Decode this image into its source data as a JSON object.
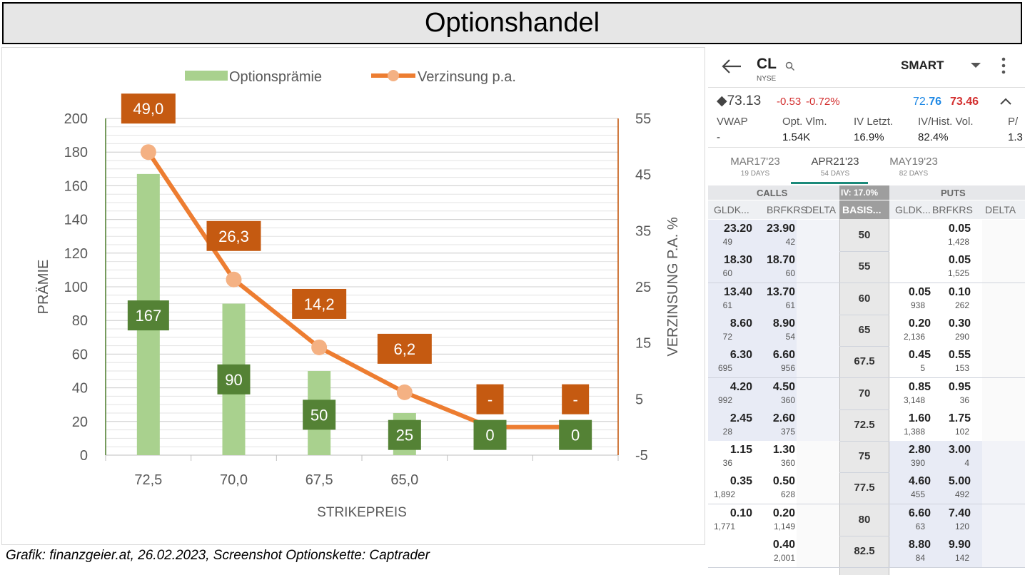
{
  "title": "Optionshandel",
  "caption": "Grafik: finanzgeier.at, 26.02.2023, Screenshot Optionskette: Captrader",
  "chart_data": {
    "type": "bar",
    "categories": [
      "72,5",
      "70,0",
      "67,5",
      "65,0",
      "",
      ""
    ],
    "series": [
      {
        "name": "Optionsprämie",
        "type": "bar",
        "axis": "left",
        "values": [
          167,
          90,
          50,
          25,
          0,
          0
        ],
        "labels": [
          "167",
          "90",
          "50",
          "25",
          "0",
          "0"
        ],
        "color": "#a9d18e",
        "label_color": "#548235"
      },
      {
        "name": "Verzinsung p.a.",
        "type": "line",
        "axis": "right",
        "values": [
          49.0,
          26.3,
          14.2,
          6.2,
          0,
          0
        ],
        "labels": [
          "49,0",
          "26,3",
          "14,2",
          "6,2",
          "-",
          "-"
        ],
        "color": "#ed7d31",
        "marker_color": "#f4b183",
        "label_color": "#c55a11"
      }
    ],
    "xlabel": "STRIKEPREIS",
    "ylabel": "PRÄMIE",
    "y2label": "VERZINSUNG P.A. %",
    "ylim": [
      0,
      200
    ],
    "y2lim": [
      -5,
      55
    ],
    "yticks": [
      "0",
      "20",
      "40",
      "60",
      "80",
      "100",
      "120",
      "140",
      "160",
      "180",
      "200"
    ],
    "y2ticks": [
      "-5",
      "5",
      "15",
      "25",
      "35",
      "45",
      "55"
    ],
    "grid": true,
    "legend_position": "top"
  },
  "phone": {
    "symbol": "CL",
    "exchange": "NYSE",
    "route": "SMART",
    "price": "◆73.13",
    "change": "-0.53",
    "change_pct": "-0.72%",
    "bid_prefix": "72.",
    "bid_suffix": "76",
    "ask": "73.46",
    "stats": [
      {
        "label": "VWAP",
        "value": "-"
      },
      {
        "label": "Opt. Vlm.",
        "value": "1.54K"
      },
      {
        "label": "IV Letzt.",
        "value": "16.9%"
      },
      {
        "label": "IV/Hist. Vol.",
        "value": "82.4%"
      },
      {
        "label": "P/",
        "value": "1.3"
      }
    ],
    "expiries": [
      {
        "label": "MAR17'23",
        "days": "19 DAYS"
      },
      {
        "label": "APR21'23",
        "days": "54 DAYS"
      },
      {
        "label": "MAY19'23",
        "days": "82 DAYS"
      }
    ],
    "calls_label": "CALLS",
    "iv_label": "IV: 17.0%",
    "puts_label": "PUTS",
    "col_headers": [
      "GLDK...",
      "BRFKRS",
      "DELTA",
      "BASIS...",
      "GLDK...",
      "BRFKRS",
      "DELTA"
    ],
    "rows": [
      {
        "strike": "50",
        "cb": "23.20",
        "cbs": "49",
        "ca": "23.90",
        "cas": "42",
        "pb": "",
        "pbs": "",
        "pa": "0.05",
        "pas": "1,428"
      },
      {
        "strike": "55",
        "cb": "18.30",
        "cbs": "60",
        "ca": "18.70",
        "cas": "60",
        "pb": "",
        "pbs": "",
        "pa": "0.05",
        "pas": "1,525"
      },
      {
        "strike": "60",
        "cb": "13.40",
        "cbs": "61",
        "ca": "13.70",
        "cas": "61",
        "pb": "0.05",
        "pbs": "938",
        "pa": "0.10",
        "pas": "262"
      },
      {
        "strike": "65",
        "cb": "8.60",
        "cbs": "72",
        "ca": "8.90",
        "cas": "54",
        "pb": "0.20",
        "pbs": "2,136",
        "pa": "0.30",
        "pas": "290"
      },
      {
        "strike": "67.5",
        "cb": "6.30",
        "cbs": "695",
        "ca": "6.60",
        "cas": "956",
        "pb": "0.45",
        "pbs": "5",
        "pa": "0.55",
        "pas": "153"
      },
      {
        "strike": "70",
        "cb": "4.20",
        "cbs": "992",
        "ca": "4.50",
        "cas": "360",
        "pb": "0.85",
        "pbs": "3,148",
        "pa": "0.95",
        "pas": "36"
      },
      {
        "strike": "72.5",
        "cb": "2.45",
        "cbs": "28",
        "ca": "2.60",
        "cas": "375",
        "pb": "1.60",
        "pbs": "1,388",
        "pa": "1.75",
        "pas": "102"
      },
      {
        "strike": "75",
        "cb": "1.15",
        "cbs": "36",
        "ca": "1.30",
        "cas": "360",
        "pb": "2.80",
        "pbs": "390",
        "pa": "3.00",
        "pas": "4"
      },
      {
        "strike": "77.5",
        "cb": "0.35",
        "cbs": "1,892",
        "ca": "0.50",
        "cas": "628",
        "pb": "4.60",
        "pbs": "455",
        "pa": "5.00",
        "pas": "492"
      },
      {
        "strike": "80",
        "cb": "0.10",
        "cbs": "1,771",
        "ca": "0.20",
        "cas": "1,149",
        "pb": "6.60",
        "pbs": "63",
        "pa": "7.40",
        "pas": "120"
      },
      {
        "strike": "82.5",
        "cb": "",
        "cbs": "",
        "ca": "0.40",
        "cas": "2,001",
        "pb": "8.80",
        "pbs": "84",
        "pa": "9.90",
        "pas": "142"
      }
    ]
  }
}
